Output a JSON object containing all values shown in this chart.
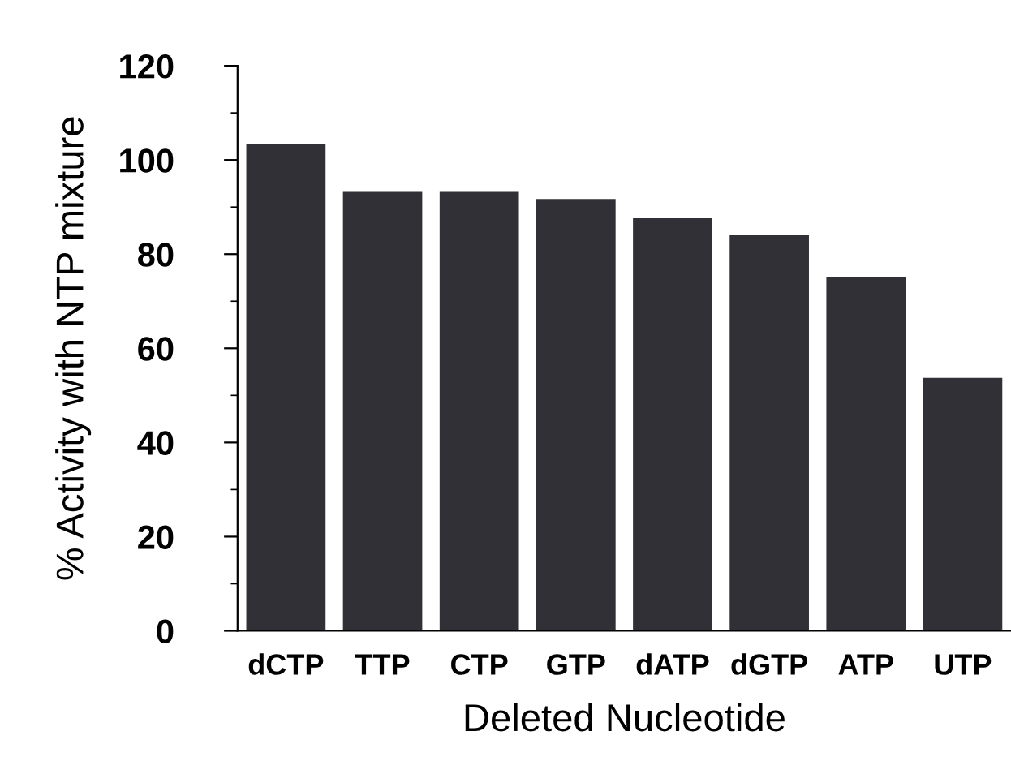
{
  "chart_data": {
    "type": "bar",
    "xlabel": "Deleted Nucleotide",
    "ylabel": "% Activity with NTP mixture",
    "categories": [
      "dCTP",
      "TTP",
      "CTP",
      "GTP",
      "dATP",
      "dGTP",
      "ATP",
      "UTP"
    ],
    "values": [
      103.3,
      93.2,
      93.2,
      91.7,
      87.6,
      84.0,
      75.2,
      53.7
    ],
    "color": "#303036",
    "ylim": [
      0,
      120
    ],
    "yticks": [
      0,
      20,
      40,
      60,
      80,
      100,
      120
    ],
    "grid": false
  }
}
